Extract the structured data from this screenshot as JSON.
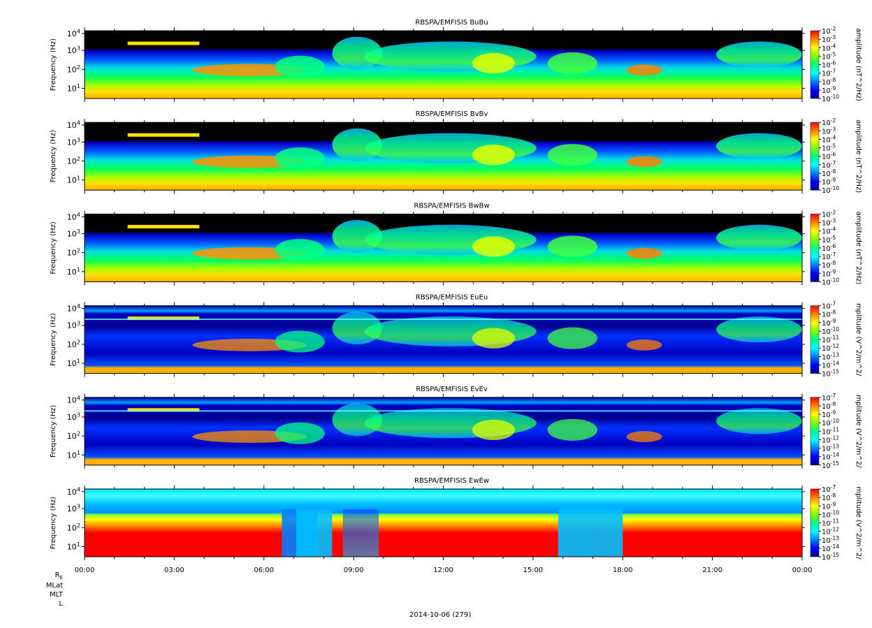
{
  "chart_data": [
    {
      "type": "heatmap",
      "title": "RBSPA/EMFISIS  BuBu",
      "ylabel": "Frequency (Hz)",
      "yticks": [
        "10^1",
        "10^2",
        "10^3",
        "10^4"
      ],
      "colorbar_label": "amplitude (nT^2/Hz)",
      "colorbar_ticks": [
        "10^-2",
        "10^-3",
        "10^-4",
        "10^-5",
        "10^-6",
        "10^-7",
        "10^-8",
        "10^-9",
        "10^-10"
      ],
      "kind": "magnetic"
    },
    {
      "type": "heatmap",
      "title": "RBSPA/EMFISIS  BvBv",
      "ylabel": "Frequency (Hz)",
      "yticks": [
        "10^1",
        "10^2",
        "10^3",
        "10^4"
      ],
      "colorbar_label": "amplitude (nT^2/Hz)",
      "colorbar_ticks": [
        "10^-2",
        "10^-3",
        "10^-4",
        "10^-5",
        "10^-6",
        "10^-7",
        "10^-8",
        "10^-9",
        "10^-10"
      ],
      "kind": "magnetic"
    },
    {
      "type": "heatmap",
      "title": "RBSPA/EMFISIS  BwBw",
      "ylabel": "Frequency (Hz)",
      "yticks": [
        "10^1",
        "10^2",
        "10^3",
        "10^4"
      ],
      "colorbar_label": "amplitude (nT^2/Hz)",
      "colorbar_ticks": [
        "10^-2",
        "10^-3",
        "10^-4",
        "10^-5",
        "10^-6",
        "10^-7",
        "10^-8",
        "10^-9",
        "10^-10"
      ],
      "kind": "magnetic"
    },
    {
      "type": "heatmap",
      "title": "RBSPA/EMFISIS  EuEu",
      "ylabel": "Frequency (Hz)",
      "yticks": [
        "10^1",
        "10^2",
        "10^3",
        "10^4"
      ],
      "colorbar_label": "mplitude (V^2/m^2/",
      "colorbar_ticks": [
        "10^-7",
        "10^-8",
        "10^-9",
        "10^-10",
        "10^-11",
        "10^-12",
        "10^-13",
        "10^-14",
        "10^-15"
      ],
      "kind": "electric"
    },
    {
      "type": "heatmap",
      "title": "RBSPA/EMFISIS  EvEv",
      "ylabel": "Frequency (Hz)",
      "yticks": [
        "10^1",
        "10^2",
        "10^3",
        "10^4"
      ],
      "colorbar_label": "mplitude (V^2/m^2/",
      "colorbar_ticks": [
        "10^-7",
        "10^-8",
        "10^-9",
        "10^-10",
        "10^-11",
        "10^-12",
        "10^-13",
        "10^-14",
        "10^-15"
      ],
      "kind": "electric"
    },
    {
      "type": "heatmap",
      "title": "RBSPA/EMFISIS  EwEw",
      "ylabel": "Frequency (Hz)",
      "yticks": [
        "10^1",
        "10^2",
        "10^3",
        "10^4"
      ],
      "colorbar_label": "mplitude (V^2/m^2/",
      "colorbar_ticks": [
        "10^-7",
        "10^-8",
        "10^-9",
        "10^-10",
        "10^-11",
        "10^-12",
        "10^-13",
        "10^-14",
        "10^-15"
      ],
      "kind": "electric_w"
    }
  ],
  "x_axis": {
    "ticks": [
      "00:00",
      "03:00",
      "06:00",
      "09:00",
      "12:00",
      "15:00",
      "18:00",
      "21:00",
      "00:00"
    ],
    "date_label": "2014-10-06 (279)"
  },
  "ephemeris_labels": {
    "re_main": "R",
    "re_sub": "E",
    "mlat": "MLat",
    "mlt": "MLT",
    "l": "L"
  },
  "colors": {
    "spectrum": [
      "#00008f",
      "#0000ff",
      "#0080ff",
      "#00ffff",
      "#00ff80",
      "#80ff00",
      "#ffff00",
      "#ff8000",
      "#ff0000"
    ],
    "background": "#000000"
  }
}
